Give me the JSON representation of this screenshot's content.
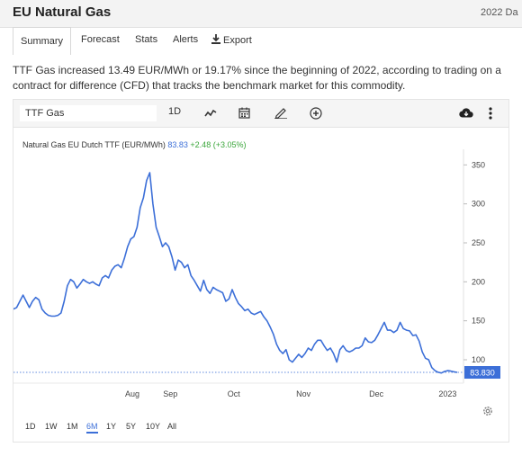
{
  "header": {
    "title": "EU Natural Gas",
    "date": "2022 Da"
  },
  "tabs": [
    {
      "label": "Summary"
    },
    {
      "label": "Forecast"
    },
    {
      "label": "Stats"
    },
    {
      "label": "Alerts"
    },
    {
      "label": "Export"
    }
  ],
  "description": "TTF Gas increased 13.49 EUR/MWh or 19.17% since the beginning of 2022, according to trading on a contract for difference (CFD) that tracks the benchmark market for this commodity.",
  "toolbar": {
    "symbol_value": "TTF Gas",
    "interval": "1D"
  },
  "legend": {
    "name": "Natural Gas EU Dutch TTF (EUR/MWh)",
    "value": "83.83",
    "change": "+2.48 (+3.05%)"
  },
  "price_badge": "83.830",
  "ranges": [
    "1D",
    "1W",
    "1M",
    "6M",
    "1Y",
    "5Y",
    "10Y",
    "All"
  ],
  "active_range": "6M",
  "colors": {
    "line": "#3c6fd8",
    "badge": "#3c6fd8",
    "change_positive": "#3aa63a"
  },
  "chart_data": {
    "type": "line",
    "series": [
      {
        "name": "Natural Gas EU Dutch TTF (EUR/MWh)",
        "values": [
          [
            0,
            165
          ],
          [
            2,
            167
          ],
          [
            4,
            175
          ],
          [
            6,
            183
          ],
          [
            8,
            175
          ],
          [
            10,
            167
          ],
          [
            12,
            175
          ],
          [
            14,
            180
          ],
          [
            16,
            177
          ],
          [
            18,
            165
          ],
          [
            20,
            160
          ],
          [
            22,
            157
          ],
          [
            24,
            156
          ],
          [
            26,
            156
          ],
          [
            28,
            157
          ],
          [
            30,
            160
          ],
          [
            32,
            175
          ],
          [
            34,
            195
          ],
          [
            36,
            203
          ],
          [
            38,
            200
          ],
          [
            40,
            192
          ],
          [
            42,
            197
          ],
          [
            44,
            203
          ],
          [
            46,
            200
          ],
          [
            48,
            198
          ],
          [
            50,
            200
          ],
          [
            52,
            197
          ],
          [
            54,
            195
          ],
          [
            56,
            205
          ],
          [
            58,
            208
          ],
          [
            60,
            205
          ],
          [
            62,
            215
          ],
          [
            64,
            220
          ],
          [
            66,
            222
          ],
          [
            68,
            218
          ],
          [
            70,
            230
          ],
          [
            72,
            245
          ],
          [
            74,
            255
          ],
          [
            76,
            258
          ],
          [
            78,
            270
          ],
          [
            80,
            295
          ],
          [
            82,
            308
          ],
          [
            84,
            330
          ],
          [
            86,
            340
          ],
          [
            88,
            300
          ],
          [
            90,
            270
          ],
          [
            92,
            258
          ],
          [
            94,
            245
          ],
          [
            96,
            250
          ],
          [
            98,
            245
          ],
          [
            100,
            232
          ],
          [
            102,
            215
          ],
          [
            104,
            228
          ],
          [
            106,
            225
          ],
          [
            108,
            218
          ],
          [
            110,
            222
          ],
          [
            112,
            208
          ],
          [
            114,
            202
          ],
          [
            116,
            195
          ],
          [
            118,
            188
          ],
          [
            120,
            202
          ],
          [
            122,
            190
          ],
          [
            124,
            185
          ],
          [
            126,
            193
          ],
          [
            128,
            190
          ],
          [
            130,
            188
          ],
          [
            132,
            186
          ],
          [
            134,
            175
          ],
          [
            136,
            178
          ],
          [
            138,
            190
          ],
          [
            140,
            180
          ],
          [
            142,
            172
          ],
          [
            144,
            168
          ],
          [
            146,
            163
          ],
          [
            148,
            165
          ],
          [
            150,
            160
          ],
          [
            152,
            158
          ],
          [
            154,
            160
          ],
          [
            156,
            162
          ],
          [
            158,
            155
          ],
          [
            160,
            150
          ],
          [
            162,
            142
          ],
          [
            164,
            133
          ],
          [
            166,
            120
          ],
          [
            168,
            112
          ],
          [
            170,
            108
          ],
          [
            172,
            113
          ],
          [
            174,
            100
          ],
          [
            176,
            97
          ],
          [
            178,
            102
          ],
          [
            180,
            107
          ],
          [
            182,
            103
          ],
          [
            184,
            108
          ],
          [
            186,
            115
          ],
          [
            188,
            112
          ],
          [
            190,
            120
          ],
          [
            192,
            125
          ],
          [
            194,
            125
          ],
          [
            196,
            118
          ],
          [
            198,
            112
          ],
          [
            200,
            115
          ],
          [
            202,
            108
          ],
          [
            204,
            97
          ],
          [
            206,
            113
          ],
          [
            208,
            118
          ],
          [
            210,
            112
          ],
          [
            212,
            110
          ],
          [
            214,
            112
          ],
          [
            216,
            115
          ],
          [
            218,
            115
          ],
          [
            220,
            118
          ],
          [
            222,
            128
          ],
          [
            224,
            123
          ],
          [
            226,
            122
          ],
          [
            228,
            125
          ],
          [
            230,
            132
          ],
          [
            232,
            140
          ],
          [
            234,
            148
          ],
          [
            236,
            138
          ],
          [
            238,
            138
          ],
          [
            240,
            135
          ],
          [
            242,
            138
          ],
          [
            244,
            148
          ],
          [
            246,
            140
          ],
          [
            248,
            138
          ],
          [
            250,
            137
          ],
          [
            252,
            131
          ],
          [
            254,
            132
          ],
          [
            256,
            124
          ],
          [
            258,
            110
          ],
          [
            260,
            102
          ],
          [
            262,
            100
          ],
          [
            264,
            90
          ],
          [
            266,
            86
          ],
          [
            268,
            84
          ],
          [
            270,
            83
          ],
          [
            272,
            85
          ],
          [
            274,
            86
          ],
          [
            276,
            85.5
          ],
          [
            278,
            84.5
          ],
          [
            280,
            83.83
          ]
        ]
      }
    ],
    "x_tick_labels": [
      "Aug",
      "Sep",
      "Oct",
      "Nov",
      "Dec",
      "2023"
    ],
    "x_tick_positions": [
      75,
      99,
      139,
      183,
      229,
      274
    ],
    "y_ticks": [
      100,
      150,
      200,
      250,
      300,
      350
    ],
    "ylim": [
      70,
      370
    ],
    "xlim": [
      0,
      284
    ],
    "last_value": 83.83,
    "grid": false
  }
}
